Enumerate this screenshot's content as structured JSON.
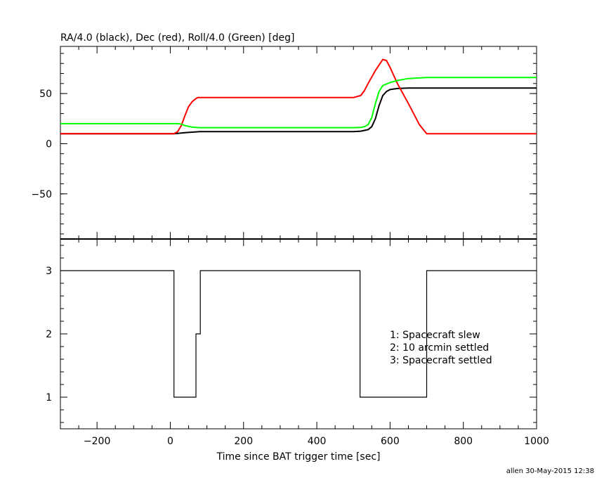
{
  "colors": {
    "ra": "#000000",
    "dec": "#ff0000",
    "roll": "#00ff00",
    "axis": "#000000"
  },
  "chart_data": [
    {
      "type": "line",
      "title": "RA/4.0 (black), Dec (red), Roll/4.0 (Green) [deg]",
      "xlim": [
        -300,
        1000
      ],
      "ylim": [
        -95,
        97
      ],
      "yticks": [
        -50,
        0,
        50
      ],
      "xticks": [
        -200,
        0,
        200,
        400,
        600,
        800,
        1000
      ],
      "grid": false,
      "series": [
        {
          "color_key": "ra",
          "x": [
            -300,
            10,
            20,
            40,
            60,
            80,
            100,
            200,
            300,
            400,
            500,
            520,
            540,
            550,
            560,
            570,
            580,
            590,
            600,
            620,
            650,
            700,
            800,
            900,
            1000
          ],
          "y": [
            10,
            10,
            10.3,
            11,
            11.5,
            12,
            12,
            12,
            12,
            12,
            12,
            12.5,
            14,
            17,
            25,
            38,
            48,
            52,
            54,
            55,
            55.5,
            55.5,
            55.5,
            55.5,
            55.5
          ]
        },
        {
          "color_key": "dec",
          "x": [
            -300,
            10,
            20,
            30,
            40,
            50,
            60,
            70,
            75,
            100,
            200,
            300,
            400,
            500,
            520,
            530,
            540,
            560,
            580,
            590,
            600,
            620,
            650,
            680,
            700,
            800,
            900,
            1000
          ],
          "y": [
            10,
            10,
            12,
            18,
            28,
            37,
            42,
            45,
            46,
            46,
            46,
            46,
            46,
            46,
            48,
            53,
            60,
            73,
            84,
            83,
            76,
            60,
            40,
            19,
            10,
            10,
            10,
            10
          ]
        },
        {
          "color_key": "roll",
          "x": [
            -300,
            0,
            20,
            30,
            40,
            60,
            80,
            100,
            200,
            300,
            400,
            500,
            520,
            530,
            540,
            550,
            560,
            570,
            580,
            600,
            620,
            650,
            700,
            800,
            900,
            1000
          ],
          "y": [
            20,
            20,
            20,
            19.5,
            18,
            16.5,
            16,
            16,
            16,
            16,
            16,
            16,
            16.3,
            17,
            19,
            26,
            40,
            52,
            58,
            61,
            63,
            65,
            66,
            66,
            66,
            66
          ]
        }
      ]
    },
    {
      "type": "line",
      "xlabel": "Time since BAT trigger time [sec]",
      "xlim": [
        -300,
        1000
      ],
      "ylim": [
        0.5,
        3.5
      ],
      "yticks": [
        1,
        2,
        3
      ],
      "xticks": [
        -200,
        0,
        200,
        400,
        600,
        800,
        1000
      ],
      "grid": false,
      "step": true,
      "series": [
        {
          "color_key": "ra",
          "x": [
            -300,
            10,
            10,
            70,
            70,
            82,
            82,
            518,
            518,
            700,
            700,
            1000
          ],
          "y": [
            3,
            3,
            1,
            1,
            2,
            2,
            3,
            3,
            1,
            1,
            3,
            3
          ]
        }
      ],
      "annotations": [
        "1: Spacecraft slew",
        "2: 10 arcmin settled",
        "3: Spacecraft settled"
      ]
    }
  ],
  "footer": "allen 30-May-2015 12:38"
}
